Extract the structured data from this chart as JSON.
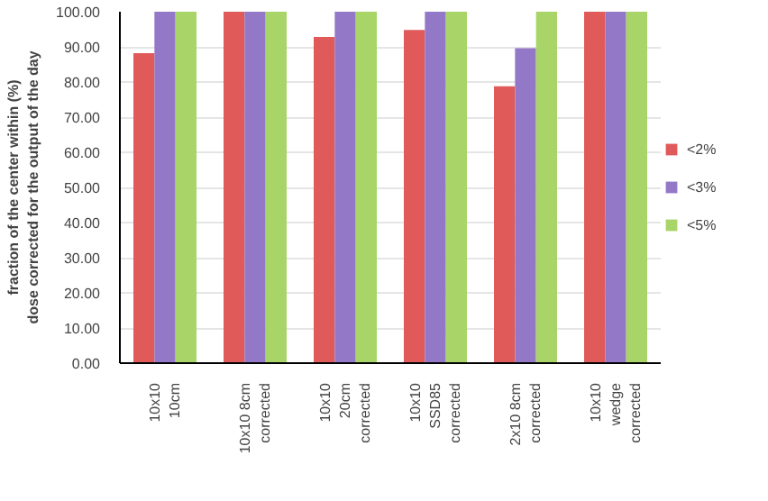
{
  "chart_data": {
    "type": "bar",
    "ylabel": "fraction of the center within (%)\ndose corrected for the output of the day",
    "categories": [
      "10x10\n10cm",
      "10x10 8cm\ncorrected",
      "10x10\n20cm\ncorrected",
      "10x10\nSSD85\ncorrected",
      "2x10 8cm\ncorrected",
      "10x10\nwedge\ncorrected"
    ],
    "series": [
      {
        "name": "<2%",
        "color": "#e05a5a",
        "values": [
          88.2,
          100,
          92.8,
          94.8,
          78.8,
          100
        ]
      },
      {
        "name": "<3%",
        "color": "#9478c8",
        "values": [
          100,
          100,
          100,
          100,
          89.6,
          100
        ]
      },
      {
        "name": "<5%",
        "color": "#a8d468",
        "values": [
          100,
          100,
          100,
          100,
          100,
          100
        ]
      }
    ],
    "ylim": [
      0,
      100
    ],
    "yticks": [
      {
        "value": 0,
        "label": "0.00"
      },
      {
        "value": 10,
        "label": "10.00"
      },
      {
        "value": 20,
        "label": "20.00"
      },
      {
        "value": 30,
        "label": "30.00"
      },
      {
        "value": 40,
        "label": "40.00"
      },
      {
        "value": 50,
        "label": "50.00"
      },
      {
        "value": 60,
        "label": "60.00"
      },
      {
        "value": 70,
        "label": "70.00"
      },
      {
        "value": 80,
        "label": "80.00"
      },
      {
        "value": 90,
        "label": "90.00"
      },
      {
        "value": 100,
        "label": "100.00"
      }
    ],
    "grid": "y",
    "legend": "right"
  }
}
